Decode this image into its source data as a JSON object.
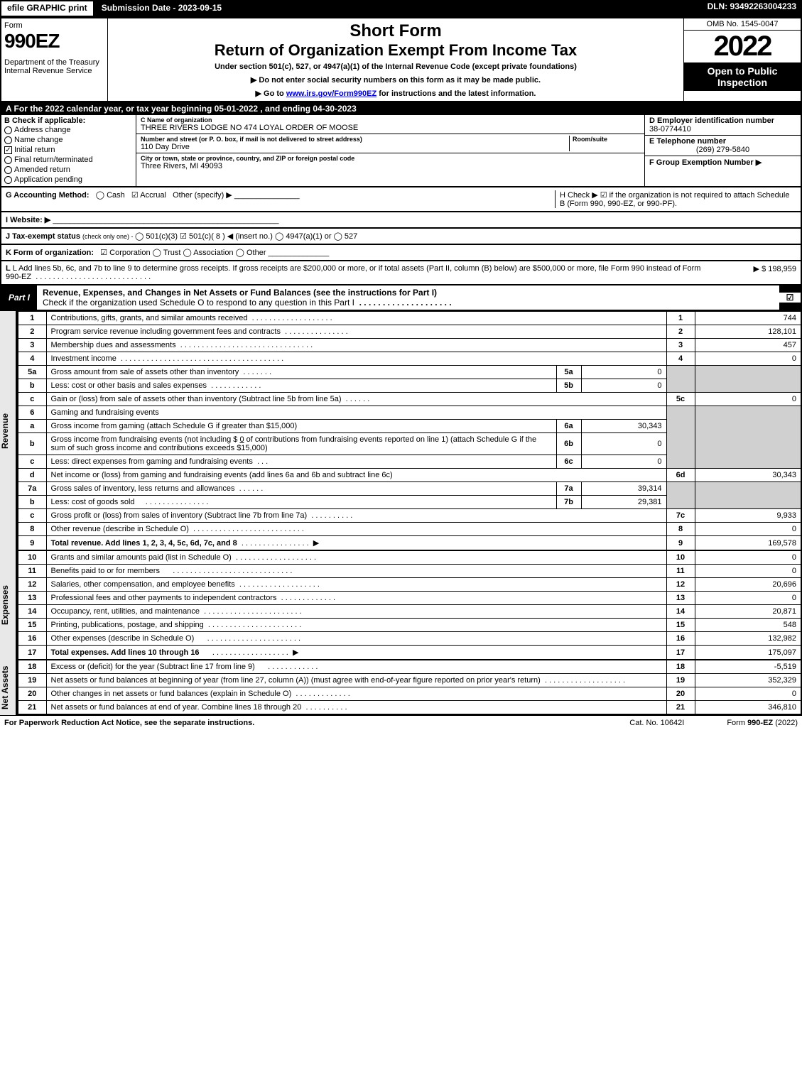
{
  "topbar": {
    "efile": "efile GRAPHIC print",
    "submission": "Submission Date - 2023-09-15",
    "dln": "DLN: 93492263004233"
  },
  "header": {
    "formword": "Form",
    "formnum": "990EZ",
    "dept": "Department of the Treasury\nInternal Revenue Service",
    "short": "Short Form",
    "title": "Return of Organization Exempt From Income Tax",
    "sub": "Under section 501(c), 527, or 4947(a)(1) of the Internal Revenue Code (except private foundations)",
    "note1": "▶ Do not enter social security numbers on this form as it may be made public.",
    "note2_pre": "▶ Go to ",
    "note2_link": "www.irs.gov/Form990EZ",
    "note2_post": " for instructions and the latest information.",
    "omb": "OMB No. 1545-0047",
    "year": "2022",
    "inspect": "Open to Public Inspection"
  },
  "rowA": "A  For the 2022 calendar year, or tax year beginning 05-01-2022 , and ending 04-30-2023",
  "sectionB": {
    "title": "B  Check if applicable:",
    "items": [
      {
        "label": "Address change",
        "checked": false,
        "round": true
      },
      {
        "label": "Name change",
        "checked": false,
        "round": true
      },
      {
        "label": "Initial return",
        "checked": true,
        "round": false
      },
      {
        "label": "Final return/terminated",
        "checked": false,
        "round": true
      },
      {
        "label": "Amended return",
        "checked": false,
        "round": true
      },
      {
        "label": "Application pending",
        "checked": false,
        "round": true
      }
    ]
  },
  "sectionC": {
    "name_lbl": "C Name of organization",
    "name": "THREE RIVERS LODGE NO 474 LOYAL ORDER OF MOOSE",
    "addr_lbl": "Number and street (or P. O. box, if mail is not delivered to street address)",
    "room_lbl": "Room/suite",
    "addr": "110 Day Drive",
    "city_lbl": "City or town, state or province, country, and ZIP or foreign postal code",
    "city": "Three Rivers, MI  49093"
  },
  "sectionD": {
    "ein_lbl": "D Employer identification number",
    "ein": "38-0774410",
    "tel_lbl": "E Telephone number",
    "tel": "(269) 279-5840",
    "grp_lbl": "F Group Exemption Number   ▶"
  },
  "rowG": {
    "label": "G Accounting Method:",
    "cash": "Cash",
    "accrual": "Accrual",
    "other": "Other (specify) ▶"
  },
  "rowH": "H  Check ▶ ☑ if the organization is not required to attach Schedule B (Form 990, 990-EZ, or 990-PF).",
  "rowI": "I Website: ▶",
  "rowJ": {
    "label": "J Tax-exempt status",
    "sub": "(check only one) - ",
    "opts": "◯ 501(c)(3)  ☑ 501(c)( 8 ) ◀ (insert no.)  ◯ 4947(a)(1) or  ◯ 527"
  },
  "rowK": {
    "label": "K Form of organization:",
    "opts": "☑ Corporation   ◯ Trust   ◯ Association   ◯ Other"
  },
  "rowL": {
    "text": "L Add lines 5b, 6c, and 7b to line 9 to determine gross receipts. If gross receipts are $200,000 or more, or if total assets (Part II, column (B) below) are $500,000 or more, file Form 990 instead of Form 990-EZ",
    "val": "▶ $ 198,959"
  },
  "part1": {
    "label": "Part I",
    "title": "Revenue, Expenses, and Changes in Net Assets or Fund Balances (see the instructions for Part I)",
    "checkline": "Check if the organization used Schedule O to respond to any question in this Part I"
  },
  "sides": {
    "revenue": "Revenue",
    "expenses": "Expenses",
    "netassets": "Net Assets"
  },
  "lines": {
    "1": {
      "desc": "Contributions, gifts, grants, and similar amounts received",
      "rnum": "1",
      "val": "744"
    },
    "2": {
      "desc": "Program service revenue including government fees and contracts",
      "rnum": "2",
      "val": "128,101"
    },
    "3": {
      "desc": "Membership dues and assessments",
      "rnum": "3",
      "val": "457"
    },
    "4": {
      "desc": "Investment income",
      "rnum": "4",
      "val": "0"
    },
    "5a": {
      "desc": "Gross amount from sale of assets other than inventory",
      "box": "5a",
      "sub": "0"
    },
    "5b": {
      "desc": "Less: cost or other basis and sales expenses",
      "box": "5b",
      "sub": "0"
    },
    "5c": {
      "desc": "Gain or (loss) from sale of assets other than inventory (Subtract line 5b from line 5a)",
      "rnum": "5c",
      "val": "0"
    },
    "6": {
      "desc": "Gaming and fundraising events"
    },
    "6a": {
      "desc": "Gross income from gaming (attach Schedule G if greater than $15,000)",
      "box": "6a",
      "sub": "30,343"
    },
    "6b": {
      "desc_pre": "Gross income from fundraising events (not including $",
      "desc_mid": "0",
      "desc_post": " of contributions from fundraising events reported on line 1) (attach Schedule G if the sum of such gross income and contributions exceeds $15,000)",
      "box": "6b",
      "sub": "0"
    },
    "6c": {
      "desc": "Less: direct expenses from gaming and fundraising events",
      "box": "6c",
      "sub": "0"
    },
    "6d": {
      "desc": "Net income or (loss) from gaming and fundraising events (add lines 6a and 6b and subtract line 6c)",
      "rnum": "6d",
      "val": "30,343"
    },
    "7a": {
      "desc": "Gross sales of inventory, less returns and allowances",
      "box": "7a",
      "sub": "39,314"
    },
    "7b": {
      "desc": "Less: cost of goods sold",
      "box": "7b",
      "sub": "29,381"
    },
    "7c": {
      "desc": "Gross profit or (loss) from sales of inventory (Subtract line 7b from line 7a)",
      "rnum": "7c",
      "val": "9,933"
    },
    "8": {
      "desc": "Other revenue (describe in Schedule O)",
      "rnum": "8",
      "val": "0"
    },
    "9": {
      "desc": "Total revenue. Add lines 1, 2, 3, 4, 5c, 6d, 7c, and 8",
      "rnum": "9",
      "val": "169,578"
    },
    "10": {
      "desc": "Grants and similar amounts paid (list in Schedule O)",
      "rnum": "10",
      "val": "0"
    },
    "11": {
      "desc": "Benefits paid to or for members",
      "rnum": "11",
      "val": "0"
    },
    "12": {
      "desc": "Salaries, other compensation, and employee benefits",
      "rnum": "12",
      "val": "20,696"
    },
    "13": {
      "desc": "Professional fees and other payments to independent contractors",
      "rnum": "13",
      "val": "0"
    },
    "14": {
      "desc": "Occupancy, rent, utilities, and maintenance",
      "rnum": "14",
      "val": "20,871"
    },
    "15": {
      "desc": "Printing, publications, postage, and shipping",
      "rnum": "15",
      "val": "548"
    },
    "16": {
      "desc": "Other expenses (describe in Schedule O)",
      "rnum": "16",
      "val": "132,982"
    },
    "17": {
      "desc": "Total expenses. Add lines 10 through 16",
      "rnum": "17",
      "val": "175,097"
    },
    "18": {
      "desc": "Excess or (deficit) for the year (Subtract line 17 from line 9)",
      "rnum": "18",
      "val": "-5,519"
    },
    "19": {
      "desc": "Net assets or fund balances at beginning of year (from line 27, column (A)) (must agree with end-of-year figure reported on prior year's return)",
      "rnum": "19",
      "val": "352,329"
    },
    "20": {
      "desc": "Other changes in net assets or fund balances (explain in Schedule O)",
      "rnum": "20",
      "val": "0"
    },
    "21": {
      "desc": "Net assets or fund balances at end of year. Combine lines 18 through 20",
      "rnum": "21",
      "val": "346,810"
    }
  },
  "footer": {
    "left": "For Paperwork Reduction Act Notice, see the separate instructions.",
    "mid": "Cat. No. 10642I",
    "right_pre": "Form ",
    "right_bold": "990-EZ",
    "right_post": " (2022)"
  }
}
